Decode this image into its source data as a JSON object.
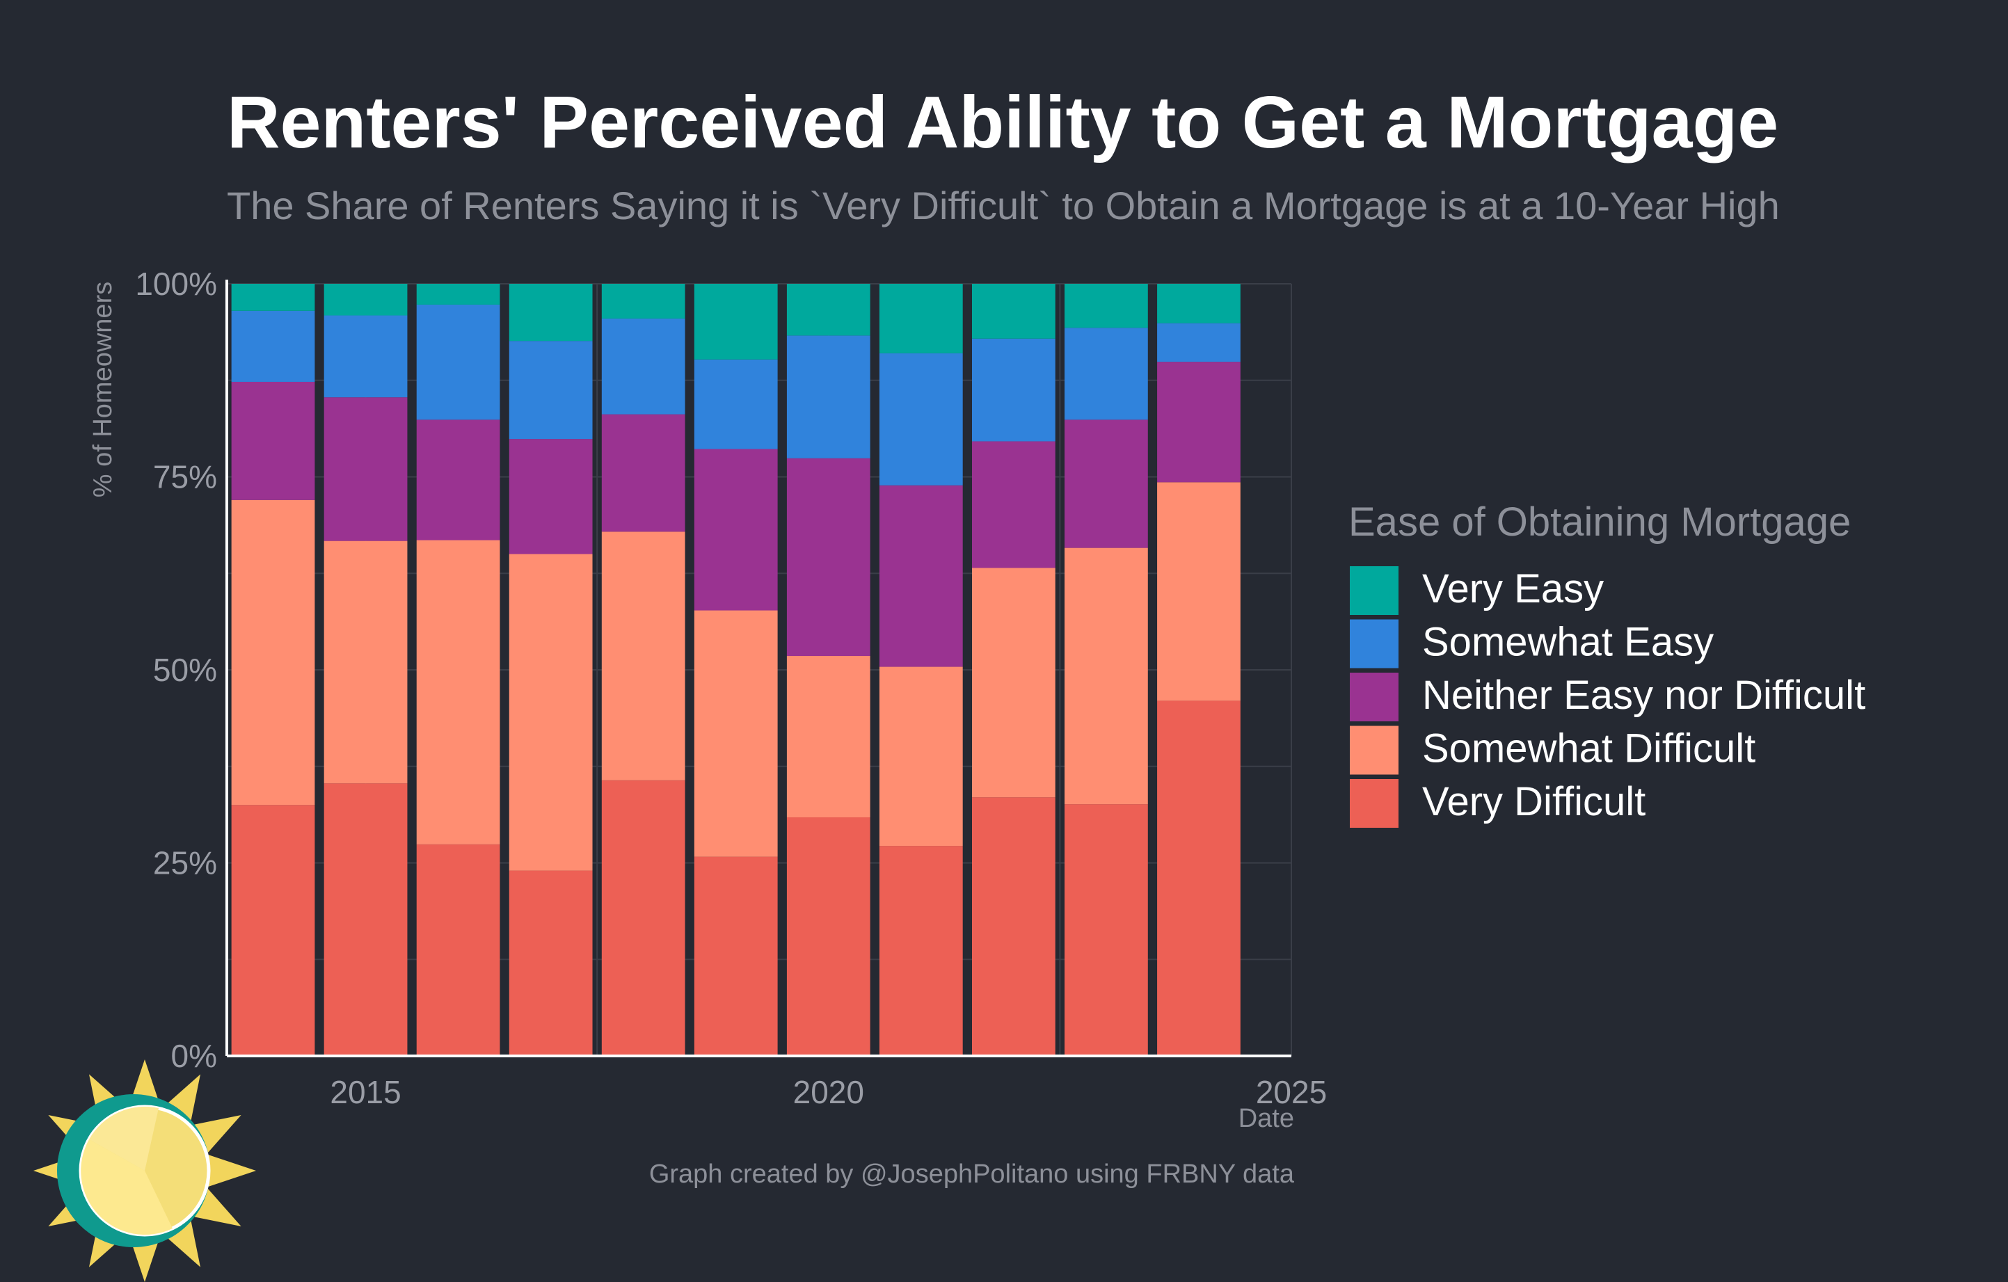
{
  "colors": {
    "background": "#252932",
    "title": "#ffffff",
    "subtitle": "#8d9099",
    "axis_text": "#9a9da6",
    "legend_text": "#ffffff",
    "legend_title": "#8d9099",
    "grid": "#3a3e48",
    "axis_line": "#ffffff"
  },
  "logo": {
    "name": "sun-logo"
  },
  "chart_data": {
    "type": "bar",
    "stacked": true,
    "title": "Renters' Perceived Ability to Get a Mortgage",
    "subtitle": "The Share of Renters Saying it is `Very Difficult` to Obtain a Mortgage is at a 10-Year High",
    "xlabel": "Date",
    "ylabel": "% of Homeowners",
    "x_ticks": [
      "2015",
      "2020",
      "2025"
    ],
    "x_tick_values": [
      2015,
      2020,
      2025
    ],
    "xlim": [
      2013.5,
      2025
    ],
    "y_ticks": [
      "0%",
      "25%",
      "50%",
      "75%",
      "100%"
    ],
    "y_tick_values": [
      0,
      25,
      50,
      75,
      100
    ],
    "ylim": [
      0,
      100
    ],
    "grid": true,
    "legend_title": "Ease of Obtaining Mortgage",
    "legend_position": "right",
    "caption": "Graph created by @JosephPolitano using FRBNY data",
    "x": [
      2014,
      2015,
      2016,
      2017,
      2018,
      2019,
      2020,
      2021,
      2022,
      2023,
      2024
    ],
    "series": [
      {
        "name": "Very Difficult",
        "color": "#ed6055",
        "values": [
          32.5,
          35.3,
          27.4,
          24.0,
          35.7,
          25.8,
          30.9,
          27.2,
          33.5,
          32.6,
          46.0
        ]
      },
      {
        "name": "Somewhat Difficult",
        "color": "#ff8e72",
        "values": [
          39.5,
          31.4,
          39.4,
          41.0,
          32.2,
          31.9,
          20.9,
          23.2,
          29.7,
          33.2,
          28.3
        ]
      },
      {
        "name": "Neither Easy nor Difficult",
        "color": "#9a3391",
        "values": [
          15.3,
          18.6,
          15.6,
          14.9,
          15.2,
          20.9,
          25.6,
          23.5,
          16.4,
          16.6,
          15.6
        ]
      },
      {
        "name": "Somewhat Easy",
        "color": "#3083dc",
        "values": [
          9.2,
          10.6,
          14.9,
          12.7,
          12.4,
          11.6,
          15.9,
          17.1,
          13.3,
          11.9,
          5.0
        ]
      },
      {
        "name": "Very Easy",
        "color": "#00a99d",
        "values": [
          3.5,
          4.1,
          2.7,
          7.4,
          4.5,
          9.8,
          6.7,
          9.0,
          7.1,
          5.7,
          5.1
        ]
      }
    ]
  }
}
